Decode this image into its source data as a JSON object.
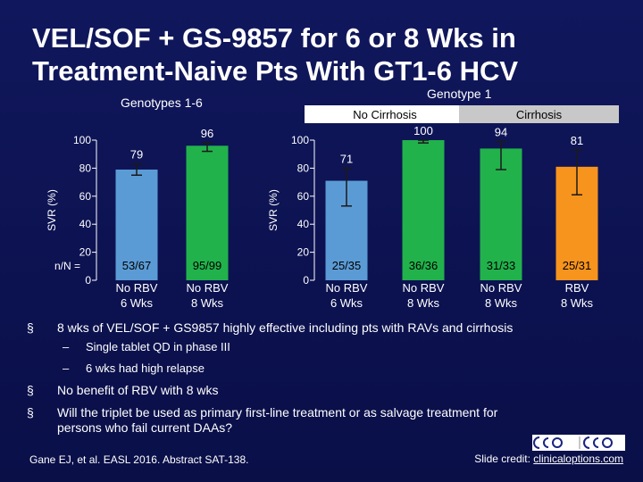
{
  "slide": {
    "title_line1": "VEL/SOF + GS-9857 for 6 or 8 Wks in",
    "title_line2": "Treatment-Naive Pts With GT1-6 HCV"
  },
  "chart_data": [
    {
      "type": "bar",
      "title": "Genotypes 1-6",
      "ylabel": "SVR (%)",
      "ylim": [
        0,
        100
      ],
      "yticks": [
        0,
        20,
        40,
        60,
        80,
        100
      ],
      "categories": [
        "No RBV\n6 Wks",
        "No RBV\n8 Wks"
      ],
      "values": [
        79,
        96
      ],
      "value_labels": [
        "79",
        "96"
      ],
      "error_low": [
        75,
        92
      ],
      "error_high": [
        83,
        98
      ],
      "n_labels": [
        "53/67",
        "95/99"
      ],
      "n_prefix": "n/N =",
      "colors": [
        "#5b9bd5",
        "#22b24c"
      ]
    },
    {
      "type": "bar",
      "title": "Genotype 1",
      "ylabel": "SVR (%)",
      "ylim": [
        0,
        100
      ],
      "yticks": [
        0,
        20,
        40,
        60,
        80,
        100
      ],
      "groups": [
        {
          "label": "No Cirrhosis",
          "span": [
            0,
            1
          ],
          "color": "#ffffff",
          "text_color": "#000000"
        },
        {
          "label": "Cirrhosis",
          "span": [
            2,
            3
          ],
          "color": "#c8c8c8",
          "text_color": "#000000"
        }
      ],
      "categories": [
        "No RBV\n6 Wks",
        "No RBV\n8 Wks",
        "No RBV\n8 Wks",
        "RBV\n8 Wks"
      ],
      "values": [
        71,
        100,
        94,
        81
      ],
      "value_labels": [
        "71",
        "100",
        "94",
        "81"
      ],
      "error_low": [
        53,
        98,
        79,
        61
      ],
      "error_high": [
        80,
        100,
        99,
        93
      ],
      "n_labels": [
        "25/35",
        "36/36",
        "31/33",
        "25/31"
      ],
      "colors": [
        "#5b9bd5",
        "#22b24c",
        "#22b24c",
        "#f7941d"
      ]
    }
  ],
  "bullets": [
    {
      "level": 1,
      "marker": "§",
      "text": "8 wks of VEL/SOF + GS9857 highly effective including pts with RAVs and cirrhosis"
    },
    {
      "level": 2,
      "marker": "–",
      "text": "Single tablet QD in phase III"
    },
    {
      "level": 2,
      "marker": "–",
      "text": "6 wks had high relapse"
    },
    {
      "level": 1,
      "marker": "§",
      "text": "No benefit of RBV with 8 wks"
    },
    {
      "level": 1,
      "marker": "§",
      "text": "Will the triplet be used as primary first-line treatment or as salvage treatment for"
    },
    {
      "level": 1,
      "marker": "",
      "text": "persons who fail current DAAs?"
    }
  ],
  "footer": {
    "citation": "Gane EJ, et al. EASL 2016. Abstract SAT-138.",
    "credit_prefix": "Slide credit: ",
    "credit_link": "clinicaloptions.com"
  },
  "logo": {
    "icon": "clinical-care-options-logo-icon"
  }
}
